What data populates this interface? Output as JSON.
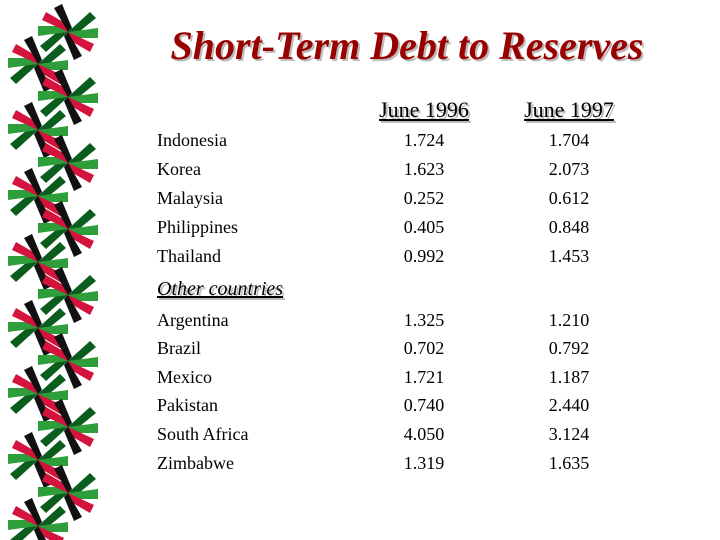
{
  "title": "Short-Term Debt to Reserves",
  "table": {
    "columns": [
      "June 1996",
      "June 1997"
    ],
    "groups": [
      {
        "rows": [
          [
            "Indonesia",
            "1.724",
            "1.704"
          ],
          [
            "Korea",
            "1.623",
            "2.073"
          ],
          [
            "Malaysia",
            "0.252",
            "0.612"
          ],
          [
            "Philippines",
            "0.405",
            "0.848"
          ],
          [
            "Thailand",
            "0.992",
            "1.453"
          ]
        ]
      },
      {
        "label": "Other countries",
        "rows": [
          [
            "Argentina",
            "1.325",
            "1.210"
          ],
          [
            "Brazil",
            "0.702",
            "0.792"
          ],
          [
            "Mexico",
            "1.721",
            "1.187"
          ],
          [
            "Pakistan",
            "0.740",
            "2.440"
          ],
          [
            "South Africa",
            "4.050",
            "3.124"
          ],
          [
            "Zimbabwe",
            "1.319",
            "1.635"
          ]
        ]
      }
    ]
  }
}
